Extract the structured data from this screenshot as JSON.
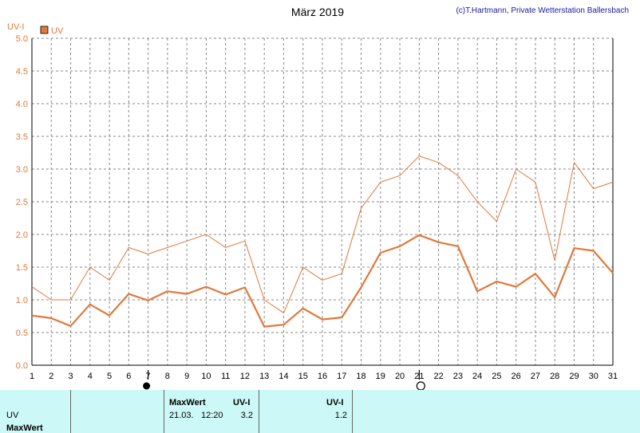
{
  "chart_data": {
    "type": "line",
    "title": "März 2019",
    "credit": "(c)T.Hartmann, Private Wetterstation Ballersbach",
    "ylabel": "UV-I",
    "xlabel": "",
    "ylim": [
      0,
      5.0
    ],
    "xlim": [
      1,
      31
    ],
    "grid": true,
    "legend": {
      "placement": "top-left",
      "entries": [
        "UV"
      ]
    },
    "x": [
      1,
      2,
      3,
      4,
      5,
      6,
      7,
      8,
      9,
      10,
      11,
      12,
      13,
      14,
      15,
      16,
      17,
      18,
      19,
      20,
      21,
      22,
      23,
      24,
      25,
      26,
      27,
      28,
      29,
      30,
      31
    ],
    "y_ticks": [
      "0.0",
      "0.5",
      "1.0",
      "1.5",
      "2.0",
      "2.5",
      "3.0",
      "3.5",
      "4.0",
      "4.5",
      "5.0"
    ],
    "x_ticks": [
      "1",
      "2",
      "3",
      "4",
      "5",
      "6",
      "7",
      "8",
      "9",
      "10",
      "11",
      "12",
      "13",
      "14",
      "15",
      "16",
      "17",
      "18",
      "19",
      "20",
      "21",
      "22",
      "23",
      "24",
      "25",
      "26",
      "27",
      "28",
      "29",
      "30",
      "31"
    ],
    "series": [
      {
        "name": "UV",
        "role": "max",
        "color": "#e0783c",
        "values": [
          1.2,
          1.0,
          1.0,
          1.5,
          1.3,
          1.8,
          1.7,
          1.8,
          1.9,
          2.0,
          1.8,
          1.9,
          1.0,
          0.8,
          1.5,
          1.3,
          1.4,
          2.4,
          2.8,
          2.9,
          3.2,
          3.1,
          2.9,
          2.5,
          2.2,
          3.0,
          2.8,
          1.6,
          3.1,
          2.7,
          2.8
        ]
      },
      {
        "name": "UV",
        "role": "mean",
        "color": "#e0783c",
        "values": [
          0.76,
          0.72,
          0.6,
          0.93,
          0.76,
          1.09,
          0.99,
          1.13,
          1.09,
          1.2,
          1.08,
          1.19,
          0.59,
          0.62,
          0.87,
          0.7,
          0.73,
          1.19,
          1.72,
          1.82,
          1.99,
          1.88,
          1.82,
          1.13,
          1.28,
          1.2,
          1.4,
          1.04,
          1.79,
          1.75,
          1.41
        ]
      }
    ],
    "moon_phases": [
      {
        "day": 7,
        "phase": "new-moon"
      },
      {
        "day": 21,
        "phase": "full-moon"
      }
    ]
  },
  "table": {
    "row_label_uv": "UV",
    "row_label_maxwert": "MaxWert",
    "col1_header": "MaxWert",
    "col1_unit": "UV-I",
    "col1_date": "21.03.",
    "col1_time": "12:20",
    "col1_value": "3.2",
    "col2_unit": "UV-I",
    "col2_value": "1.2"
  }
}
